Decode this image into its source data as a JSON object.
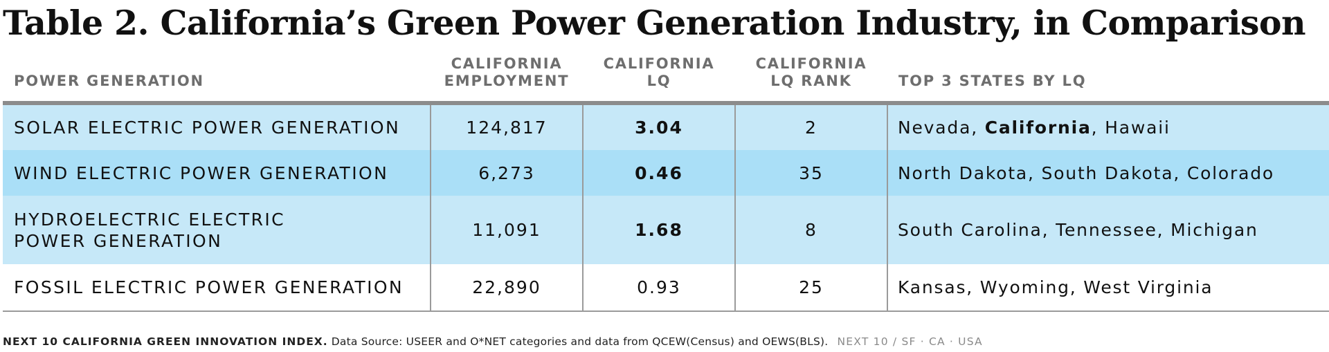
{
  "title": "Table 2. California’s Green Power Generation Industry, in Comparison",
  "headers": {
    "col1": "POWER GENERATION",
    "col2_line1": "CALIFORNIA",
    "col2_line2": "EMPLOYMENT",
    "col3_line1": "CALIFORNIA",
    "col3_line2": "LQ",
    "col4_line1": "CALIFORNIA",
    "col4_line2": "LQ RANK",
    "col5": "TOP 3 STATES BY LQ"
  },
  "rows": [
    {
      "name_line1": "SOLAR ELECTRIC POWER GENERATION",
      "name_line2": "",
      "employment": "124,817",
      "lq": "3.04",
      "rank": "2",
      "state1": "Nevada",
      "state2": "California",
      "state3": "Hawaii"
    },
    {
      "name_line1": "WIND ELECTRIC POWER GENERATION",
      "name_line2": "",
      "employment": "6,273",
      "lq": "0.46",
      "rank": "35",
      "state1": "North Dakota",
      "state2": "South Dakota",
      "state3": "Colorado"
    },
    {
      "name_line1": "HYDROELECTRIC ELECTRIC",
      "name_line2": "POWER GENERATION",
      "employment": "11,091",
      "lq": "1.68",
      "rank": "8",
      "state1": "South Carolina",
      "state2": "Tennessee",
      "state3": "Michigan"
    },
    {
      "name_line1": "FOSSIL ELECTRIC POWER GENERATION",
      "name_line2": "",
      "employment": "22,890",
      "lq": "0.93",
      "rank": "25",
      "state1": "Kansas",
      "state2": "Wyoming",
      "state3": "West Virginia"
    }
  ],
  "footer": {
    "brand": "NEXT 10 CALIFORNIA GREEN INNOVATION INDEX.",
    "source": "Data Source: USEER and O*NET categories and data from QCEW(Census) and OEWS(BLS).",
    "credit": "NEXT 10  /  SF · CA · USA"
  },
  "colors": {
    "row_light_blue": "#c6e8f8",
    "row_mid_blue": "#aadff7",
    "header_text": "#6e6e6e",
    "rule": "#8c8c8c"
  }
}
